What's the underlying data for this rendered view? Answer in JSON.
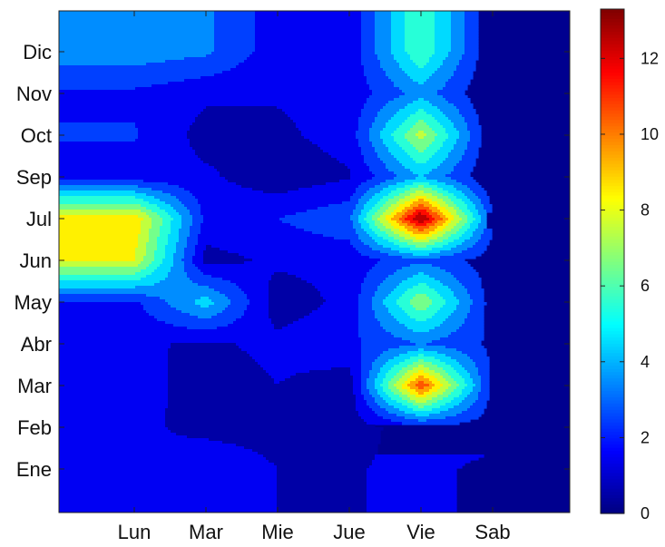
{
  "chart_data": {
    "type": "heatmap",
    "title": "",
    "xlabel": "",
    "ylabel": "",
    "x_categories": [
      "Lun",
      "Mar",
      "Mie",
      "Jue",
      "Vie",
      "Sab"
    ],
    "y_categories": [
      "Ene",
      "Feb",
      "Mar",
      "Abr",
      "May",
      "Jun",
      "Jul",
      "Sep",
      "Oct",
      "Nov",
      "Dic"
    ],
    "colormap": "jet",
    "plot_style": "filled-contour",
    "colorbar": {
      "min": 0,
      "max": 13.3,
      "ticks": [
        0,
        2,
        4,
        6,
        8,
        10,
        12
      ],
      "tick_labels": [
        "0",
        "2",
        "4",
        "6",
        "8",
        "10",
        "12"
      ],
      "placement": "right"
    },
    "values": [
      [
        1.0,
        2.0,
        1.0,
        0.9,
        1.3,
        0.7
      ],
      [
        1.3,
        0.6,
        0.5,
        0.5,
        1.6,
        1.5
      ],
      [
        1.6,
        0.3,
        1.0,
        0.4,
        11.0,
        1.6
      ],
      [
        1.2,
        0.8,
        1.3,
        1.8,
        3.0,
        1.8
      ],
      [
        1.8,
        4.5,
        0.4,
        1.3,
        7.0,
        1.4
      ],
      [
        8.0,
        0.6,
        1.2,
        1.3,
        2.8,
        1.4
      ],
      [
        8.8,
        1.7,
        2.0,
        2.8,
        13.3,
        2.2
      ],
      [
        1.4,
        1.2,
        0.3,
        0.9,
        4.0,
        1.0
      ],
      [
        2.1,
        0.6,
        0.8,
        1.4,
        7.5,
        1.0
      ],
      [
        1.8,
        1.2,
        1.1,
        1.3,
        3.5,
        1.0
      ],
      [
        3.6,
        3.2,
        1.4,
        1.3,
        6.0,
        1.0
      ]
    ]
  }
}
